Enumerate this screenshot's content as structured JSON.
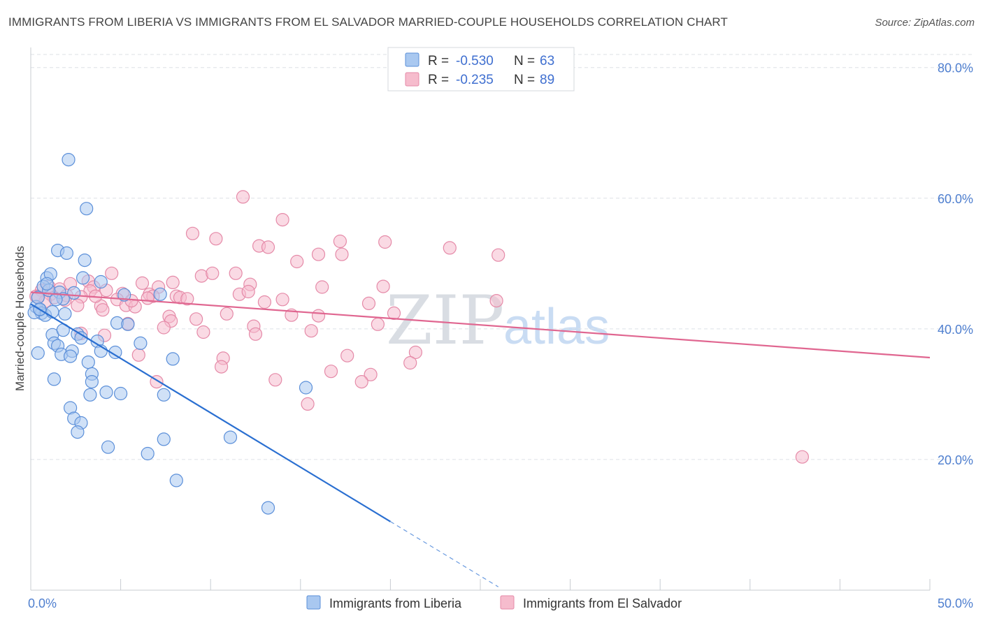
{
  "header": {
    "title": "IMMIGRANTS FROM LIBERIA VS IMMIGRANTS FROM EL SALVADOR MARRIED-COUPLE HOUSEHOLDS CORRELATION CHART",
    "source": "Source: ZipAtlas.com"
  },
  "watermark": {
    "zip": "ZIP",
    "atlas": "atlas"
  },
  "legend": {
    "r_label": "R =",
    "n_label": "N =",
    "series": [
      {
        "r": "-0.530",
        "n": "63"
      },
      {
        "r": "-0.235",
        "n": "89"
      }
    ]
  },
  "colors": {
    "liberia_fill": "#a9c8f0",
    "liberia_stroke": "#5b8fd9",
    "liberia_line": "#2a6fd1",
    "elsalvador_fill": "#f6bccd",
    "elsalvador_stroke": "#e58aa8",
    "elsalvador_line": "#e06690",
    "grid": "#dde1e6",
    "tick_text": "#4f7fcf"
  },
  "chart_data": {
    "type": "scatter",
    "title": "IMMIGRANTS FROM LIBERIA VS IMMIGRANTS FROM EL SALVADOR MARRIED-COUPLE HOUSEHOLDS CORRELATION CHART",
    "xlabel": "",
    "ylabel": "Married-couple Households",
    "xlim": [
      0,
      50
    ],
    "ylim": [
      0,
      82
    ],
    "x_tick_labels": [
      "0.0%",
      "50.0%"
    ],
    "y_ticks": [
      20,
      40,
      60,
      80
    ],
    "y_tick_labels": [
      "20.0%",
      "40.0%",
      "60.0%",
      "80.0%"
    ],
    "grid": true,
    "legend_position": "top-center",
    "series": [
      {
        "name": "Immigrants from Liberia",
        "color": "#a9c8f0",
        "trend": {
          "x0": 0,
          "y0": 43.8,
          "x1": 20,
          "y1": 10.5,
          "dashed_to_x": 26
        },
        "points": [
          [
            2.1,
            65.9
          ],
          [
            3.1,
            58.4
          ],
          [
            1.5,
            52.0
          ],
          [
            2.0,
            51.6
          ],
          [
            3.0,
            50.5
          ],
          [
            0.9,
            47.8
          ],
          [
            1.1,
            48.4
          ],
          [
            2.9,
            47.8
          ],
          [
            3.9,
            47.2
          ],
          [
            0.7,
            46.5
          ],
          [
            1.6,
            45.6
          ],
          [
            2.4,
            45.5
          ],
          [
            5.2,
            45.2
          ],
          [
            7.2,
            45.3
          ],
          [
            1.8,
            44.6
          ],
          [
            0.3,
            43.4
          ],
          [
            0.5,
            42.9
          ],
          [
            0.6,
            42.4
          ],
          [
            0.8,
            42.1
          ],
          [
            1.2,
            42.6
          ],
          [
            1.9,
            42.3
          ],
          [
            0.2,
            42.5
          ],
          [
            4.8,
            40.9
          ],
          [
            5.4,
            40.7
          ],
          [
            1.2,
            39.1
          ],
          [
            1.8,
            39.8
          ],
          [
            2.6,
            39.2
          ],
          [
            2.8,
            38.6
          ],
          [
            3.7,
            38.1
          ],
          [
            6.1,
            37.8
          ],
          [
            1.3,
            37.8
          ],
          [
            1.5,
            37.4
          ],
          [
            0.4,
            36.3
          ],
          [
            1.7,
            36.1
          ],
          [
            2.3,
            36.6
          ],
          [
            2.2,
            35.8
          ],
          [
            3.9,
            36.6
          ],
          [
            4.7,
            36.4
          ],
          [
            7.9,
            35.4
          ],
          [
            3.2,
            34.9
          ],
          [
            3.4,
            33.1
          ],
          [
            1.3,
            32.3
          ],
          [
            3.4,
            31.9
          ],
          [
            4.2,
            30.3
          ],
          [
            3.3,
            29.9
          ],
          [
            5.0,
            30.1
          ],
          [
            7.4,
            29.9
          ],
          [
            15.3,
            31.0
          ],
          [
            2.2,
            27.9
          ],
          [
            2.4,
            26.3
          ],
          [
            2.8,
            25.6
          ],
          [
            2.6,
            24.2
          ],
          [
            7.4,
            23.1
          ],
          [
            11.1,
            23.4
          ],
          [
            4.3,
            21.9
          ],
          [
            6.5,
            20.9
          ],
          [
            8.1,
            16.8
          ],
          [
            13.2,
            12.6
          ],
          [
            0.4,
            44.8
          ],
          [
            1.0,
            45.9
          ],
          [
            0.5,
            43.0
          ],
          [
            1.4,
            44.5
          ],
          [
            0.9,
            46.9
          ]
        ]
      },
      {
        "name": "Immigrants from El Salvador",
        "color": "#f6bccd",
        "trend": {
          "x0": 0,
          "y0": 45.6,
          "x1": 50,
          "y1": 35.6
        },
        "points": [
          [
            11.8,
            60.2
          ],
          [
            14.0,
            56.7
          ],
          [
            9.0,
            54.6
          ],
          [
            10.3,
            53.8
          ],
          [
            17.2,
            53.4
          ],
          [
            19.7,
            53.3
          ],
          [
            12.7,
            52.7
          ],
          [
            13.2,
            52.5
          ],
          [
            23.3,
            52.4
          ],
          [
            16.0,
            51.4
          ],
          [
            14.8,
            50.3
          ],
          [
            17.3,
            51.4
          ],
          [
            26.0,
            51.3
          ],
          [
            4.5,
            48.5
          ],
          [
            9.5,
            48.1
          ],
          [
            10.1,
            48.5
          ],
          [
            11.4,
            48.5
          ],
          [
            6.2,
            47.0
          ],
          [
            7.9,
            47.1
          ],
          [
            12.2,
            46.8
          ],
          [
            2.2,
            46.9
          ],
          [
            3.2,
            47.3
          ],
          [
            3.5,
            46.4
          ],
          [
            1.0,
            46.5
          ],
          [
            7.1,
            46.4
          ],
          [
            0.6,
            45.9
          ],
          [
            1.6,
            46.1
          ],
          [
            1.1,
            45.3
          ],
          [
            3.3,
            45.8
          ],
          [
            6.6,
            45.3
          ],
          [
            5.1,
            45.4
          ],
          [
            11.6,
            45.3
          ],
          [
            16.2,
            46.4
          ],
          [
            19.6,
            46.5
          ],
          [
            12.1,
            45.7
          ],
          [
            0.3,
            45.0
          ],
          [
            1.3,
            44.8
          ],
          [
            2.8,
            44.9
          ],
          [
            4.8,
            44.5
          ],
          [
            6.8,
            45.0
          ],
          [
            8.1,
            45.0
          ],
          [
            8.3,
            44.8
          ],
          [
            8.7,
            44.6
          ],
          [
            13.0,
            44.1
          ],
          [
            14.0,
            44.5
          ],
          [
            18.8,
            43.9
          ],
          [
            25.9,
            44.3
          ],
          [
            2.6,
            43.6
          ],
          [
            3.9,
            43.5
          ],
          [
            5.3,
            43.6
          ],
          [
            5.8,
            43.4
          ],
          [
            4.0,
            42.9
          ],
          [
            7.7,
            41.9
          ],
          [
            10.9,
            42.3
          ],
          [
            14.5,
            42.1
          ],
          [
            16.0,
            42.0
          ],
          [
            20.2,
            42.4
          ],
          [
            7.8,
            41.2
          ],
          [
            9.2,
            41.5
          ],
          [
            12.4,
            40.4
          ],
          [
            19.3,
            40.7
          ],
          [
            5.4,
            40.8
          ],
          [
            7.4,
            40.2
          ],
          [
            9.6,
            39.5
          ],
          [
            12.5,
            39.2
          ],
          [
            15.6,
            39.7
          ],
          [
            2.8,
            39.3
          ],
          [
            4.1,
            39.0
          ],
          [
            10.7,
            35.5
          ],
          [
            17.6,
            35.9
          ],
          [
            6.0,
            36.0
          ],
          [
            21.4,
            36.4
          ],
          [
            10.6,
            34.2
          ],
          [
            21.1,
            34.8
          ],
          [
            16.7,
            33.5
          ],
          [
            18.9,
            33.0
          ],
          [
            7.0,
            31.9
          ],
          [
            13.6,
            32.2
          ],
          [
            18.4,
            31.9
          ],
          [
            15.4,
            28.5
          ],
          [
            42.9,
            20.4
          ],
          [
            0.8,
            44.2
          ],
          [
            2.0,
            45.1
          ],
          [
            4.2,
            45.9
          ],
          [
            6.5,
            44.7
          ],
          [
            0.4,
            44.9
          ],
          [
            1.9,
            44.4
          ],
          [
            3.6,
            45.0
          ],
          [
            5.6,
            44.3
          ]
        ]
      }
    ]
  },
  "bottom_legend": {
    "items": [
      "Immigrants from Liberia",
      "Immigrants from El Salvador"
    ]
  }
}
